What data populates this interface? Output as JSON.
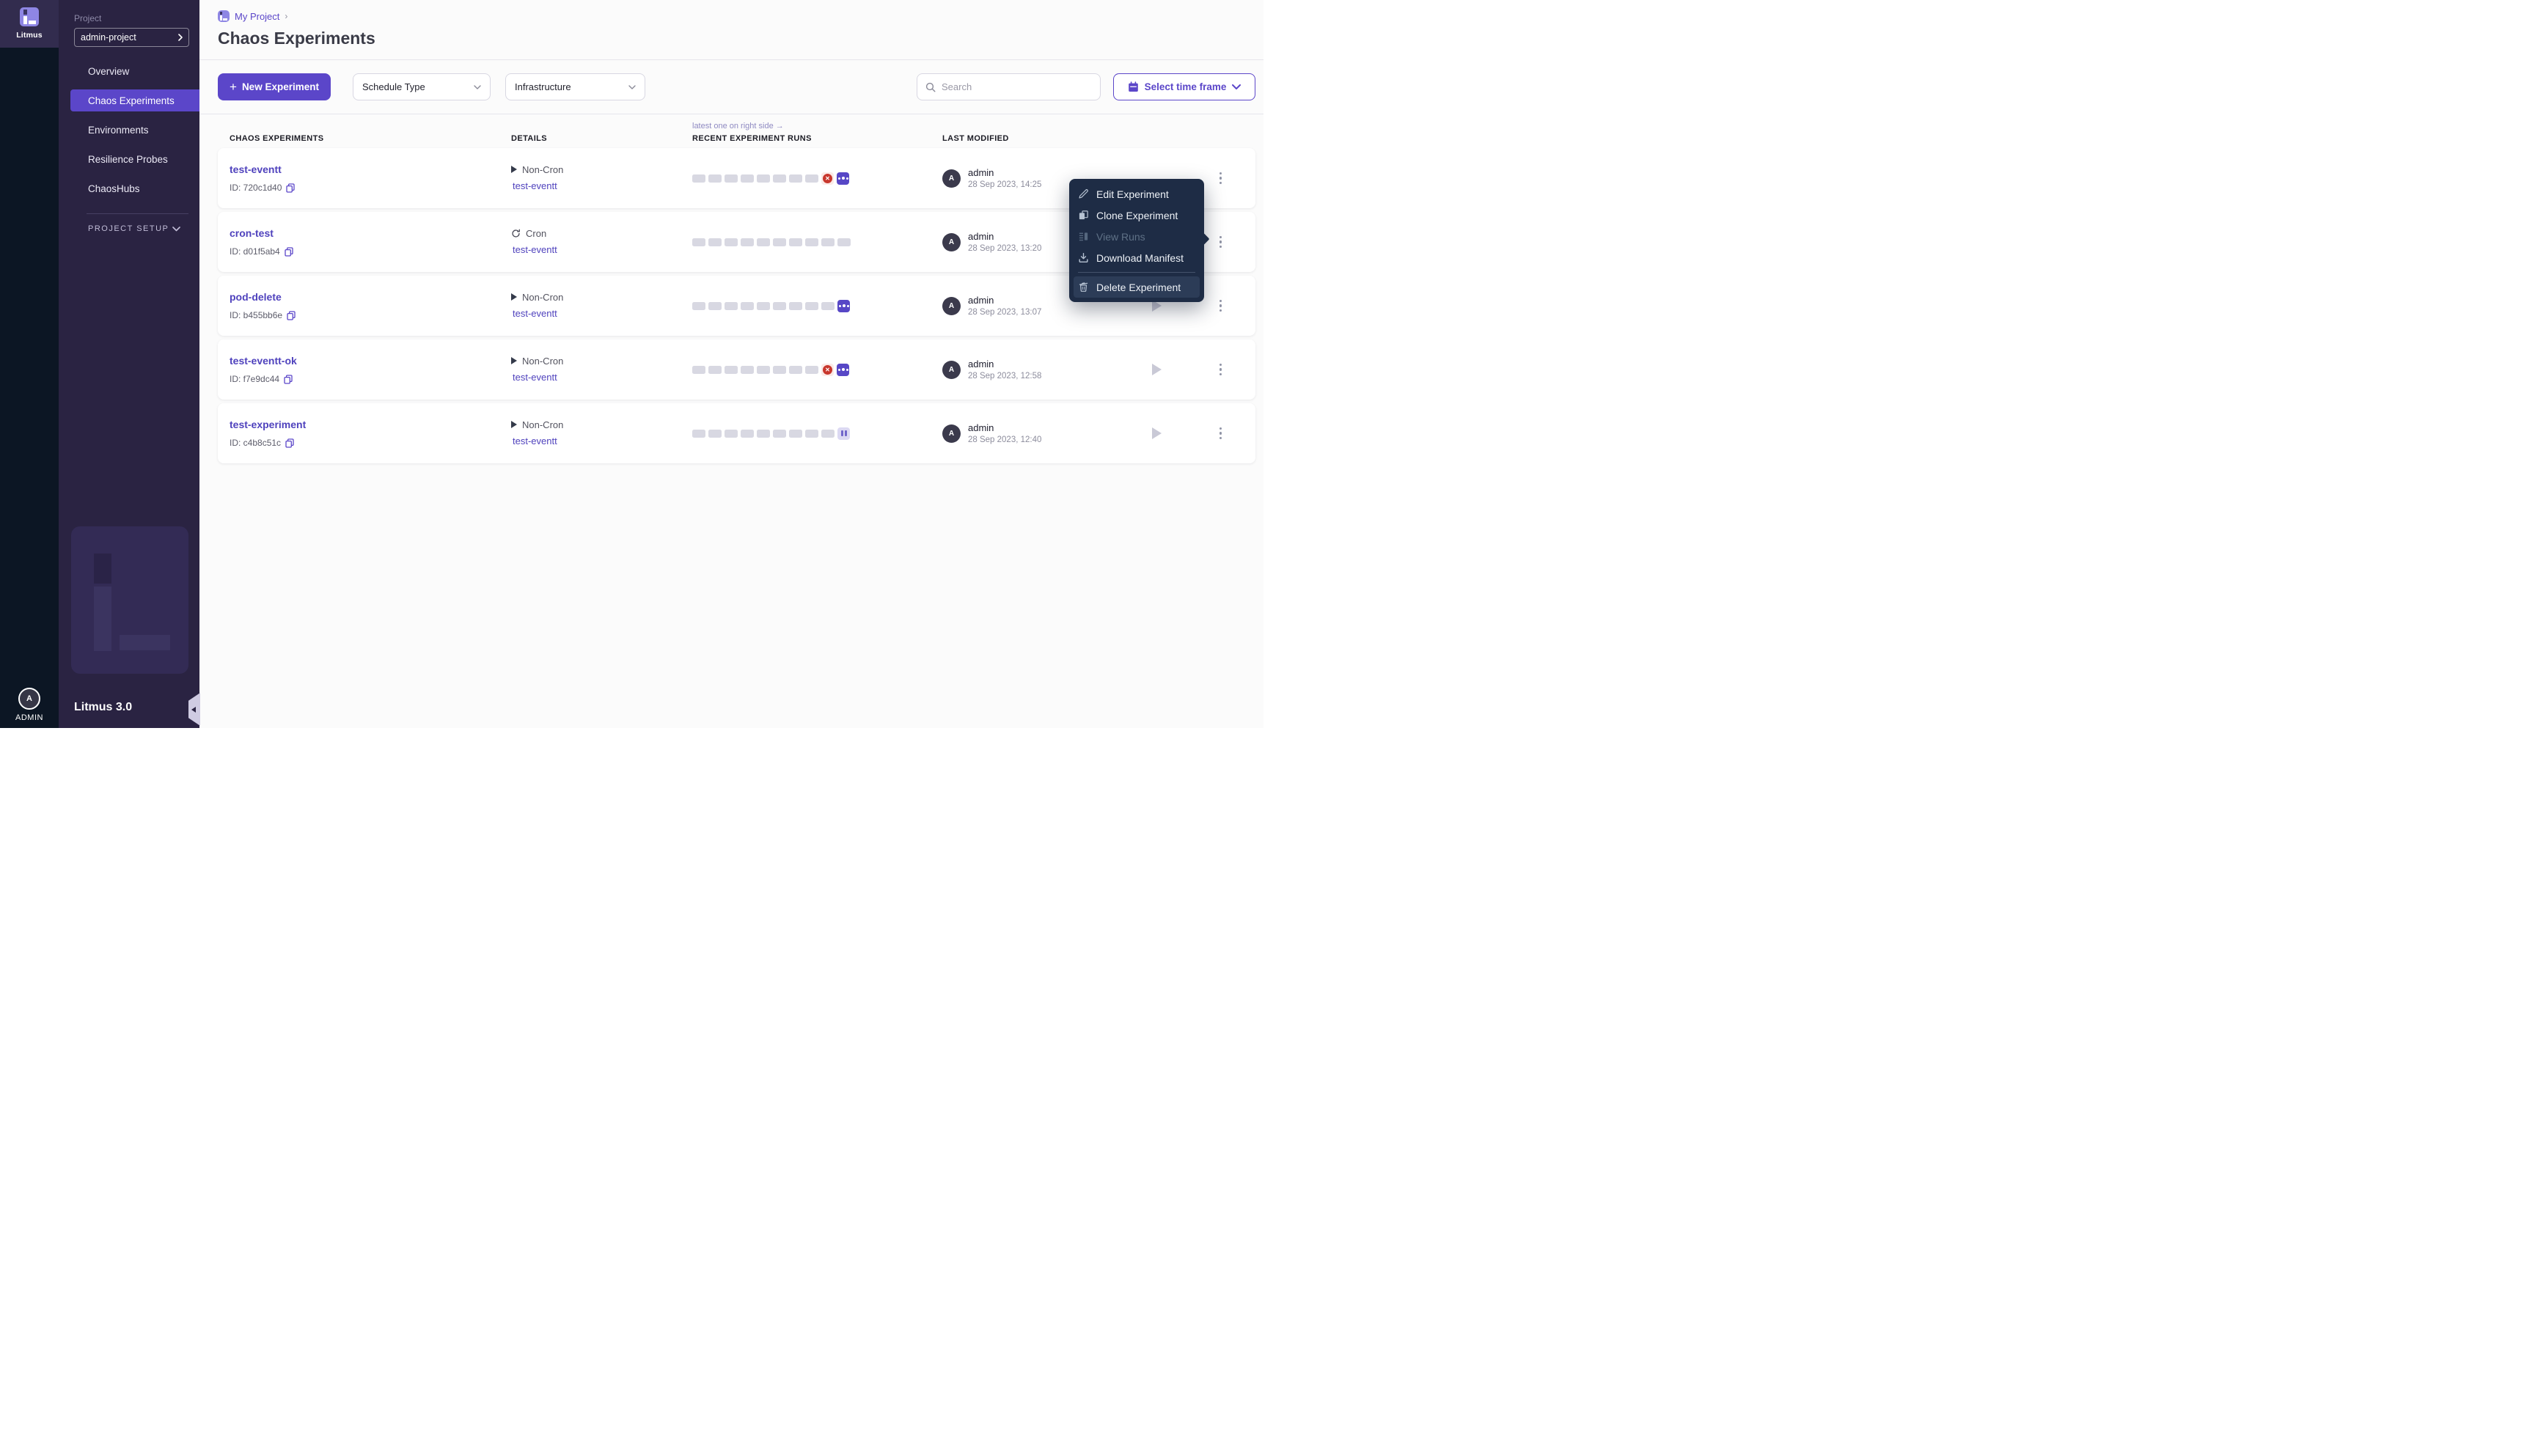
{
  "colors": {
    "accent": "#5b46c9",
    "page_bg": "#fbfbfb",
    "sidebar_bg": "#2a2342",
    "rail_top": "#322c4e",
    "rail_bottom": "#0c1624",
    "menu_bg": "#1e2c45",
    "run_empty": "#d8d8e2",
    "run_running": "#5747c6",
    "failed": "#c8372d",
    "failed_bg": "#fbeae7"
  },
  "rail": {
    "brand": "Litmus",
    "user_initial": "A",
    "user_label": "ADMIN"
  },
  "sidebar": {
    "project_label": "Project",
    "project_select": "admin-project",
    "nav": [
      {
        "label": "Overview",
        "active": false
      },
      {
        "label": "Chaos Experiments",
        "active": true
      },
      {
        "label": "Environments",
        "active": false
      },
      {
        "label": "Resilience Probes",
        "active": false
      },
      {
        "label": "ChaosHubs",
        "active": false
      }
    ],
    "section_label": "PROJECT SETUP",
    "version": "Litmus 3.0"
  },
  "header": {
    "breadcrumb": "My Project",
    "breadcrumb_sep": "›",
    "title": "Chaos Experiments"
  },
  "toolbar": {
    "new_experiment": {
      "icon": "+",
      "label": "New Experiment"
    },
    "schedule_type": "Schedule Type",
    "infrastructure": "Infrastructure",
    "search_placeholder": "Search",
    "time_frame": "Select time frame"
  },
  "table": {
    "note": "latest one on right side →",
    "headers": {
      "experiments": "CHAOS EXPERIMENTS",
      "details": "DETAILS",
      "runs": "RECENT EXPERIMENT RUNS",
      "modified": "LAST MODIFIED"
    }
  },
  "rows": [
    {
      "name": "test-eventt",
      "id": "ID: 720c1d40",
      "schedule": "Non-Cron",
      "infra": "test-eventt",
      "runs": [
        "empty",
        "empty",
        "empty",
        "empty",
        "empty",
        "empty",
        "empty",
        "empty",
        "failed",
        "running"
      ],
      "user_initial": "A",
      "user": "admin",
      "date": "28 Sep 2023, 14:25",
      "play": false
    },
    {
      "name": "cron-test",
      "id": "ID: d01f5ab4",
      "schedule": "Cron",
      "infra": "test-eventt",
      "runs": [
        "empty",
        "empty",
        "empty",
        "empty",
        "empty",
        "empty",
        "empty",
        "empty",
        "empty",
        "empty"
      ],
      "user_initial": "A",
      "user": "admin",
      "date": "28 Sep 2023, 13:20",
      "play": false
    },
    {
      "name": "pod-delete",
      "id": "ID: b455bb6e",
      "schedule": "Non-Cron",
      "infra": "test-eventt",
      "runs": [
        "empty",
        "empty",
        "empty",
        "empty",
        "empty",
        "empty",
        "empty",
        "empty",
        "empty",
        "running"
      ],
      "user_initial": "A",
      "user": "admin",
      "date": "28 Sep 2023, 13:07",
      "play": true
    },
    {
      "name": "test-eventt-ok",
      "id": "ID: f7e9dc44",
      "schedule": "Non-Cron",
      "infra": "test-eventt",
      "runs": [
        "empty",
        "empty",
        "empty",
        "empty",
        "empty",
        "empty",
        "empty",
        "empty",
        "failed",
        "running"
      ],
      "user_initial": "A",
      "user": "admin",
      "date": "28 Sep 2023, 12:58",
      "play": true
    },
    {
      "name": "test-experiment",
      "id": "ID: c4b8c51c",
      "schedule": "Non-Cron",
      "infra": "test-eventt",
      "runs": [
        "empty",
        "empty",
        "empty",
        "empty",
        "empty",
        "empty",
        "empty",
        "empty",
        "empty",
        "paused"
      ],
      "user_initial": "A",
      "user": "admin",
      "date": "28 Sep 2023, 12:40",
      "play": true
    }
  ],
  "context_menu": {
    "items": [
      {
        "label": "Edit Experiment",
        "icon": "pencil-icon",
        "disabled": false,
        "highlighted": false,
        "divider_before": false
      },
      {
        "label": "Clone Experiment",
        "icon": "clone-icon",
        "disabled": false,
        "highlighted": false,
        "divider_before": false
      },
      {
        "label": "View Runs",
        "icon": "view-runs-icon",
        "disabled": true,
        "highlighted": false,
        "divider_before": false
      },
      {
        "label": "Download Manifest",
        "icon": "download-icon",
        "disabled": false,
        "highlighted": false,
        "divider_before": false
      },
      {
        "label": "Delete Experiment",
        "icon": "trash-icon",
        "disabled": false,
        "highlighted": true,
        "divider_before": true
      }
    ]
  }
}
